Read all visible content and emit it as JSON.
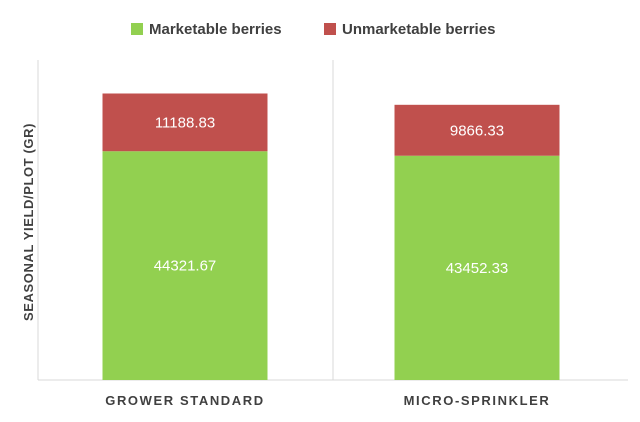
{
  "chart_data": {
    "type": "bar",
    "stacked": true,
    "categories": [
      "GROWER STANDARD",
      "MICRO-SPRINKLER"
    ],
    "series": [
      {
        "name": "Marketable berries",
        "values": [
          44321.67,
          43452.33
        ],
        "color": "#92d050"
      },
      {
        "name": "Unmarketable berries",
        "values": [
          11188.83,
          9866.33
        ],
        "color": "#c0504d"
      }
    ],
    "data_labels": [
      [
        "44321.67",
        "43452.33"
      ],
      [
        "11188.83",
        "9866.33"
      ]
    ],
    "title": "",
    "xlabel": "",
    "ylabel": "SEASONAL YIELD/PLOT (GR)",
    "ylim": [
      0,
      62000
    ],
    "y_ticks_visible": false,
    "grid": false,
    "legend_position": "top"
  }
}
